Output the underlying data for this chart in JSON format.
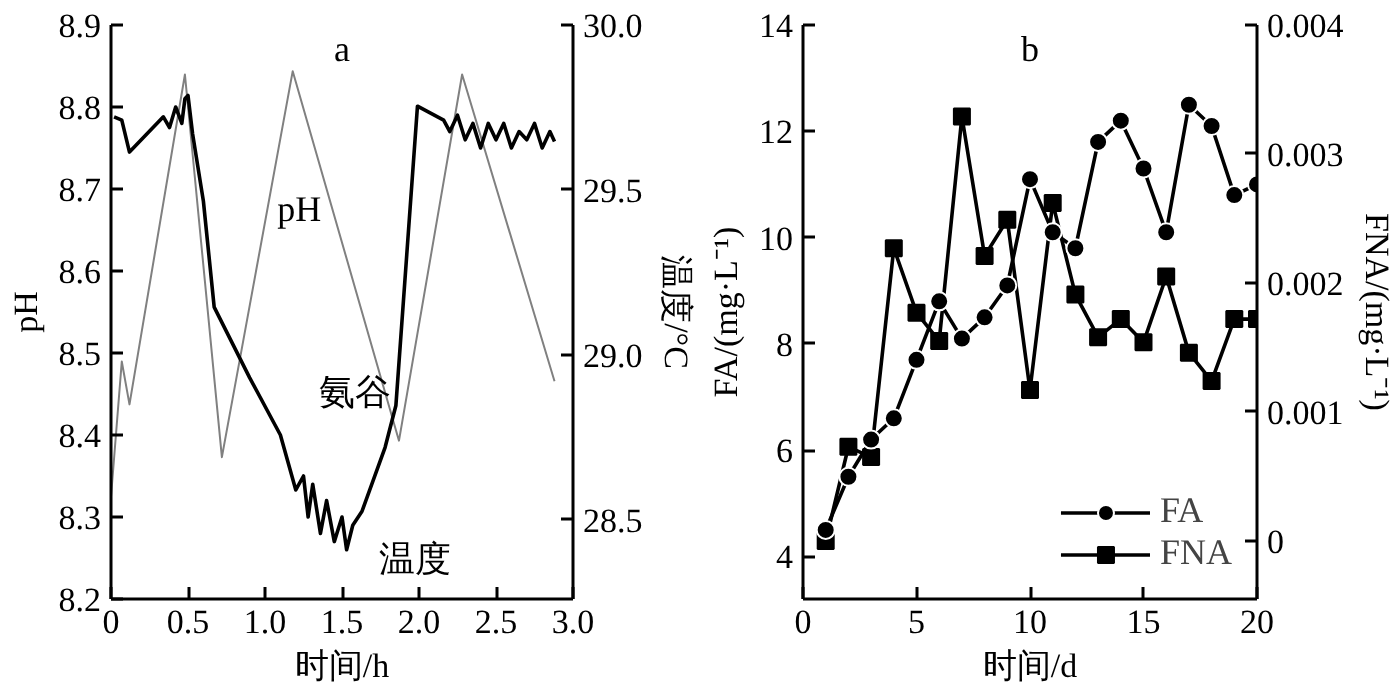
{
  "chart_data": [
    {
      "type": "line",
      "title": "a",
      "xlabel": "时间/h",
      "ylabel": "pH",
      "y2label": "温度/°C",
      "xlim": [
        0,
        3
      ],
      "xticks": [
        0,
        0.5,
        {
          "value": 1,
          "label": "1.0"
        },
        1.5,
        {
          "value": 2,
          "label": "2.0"
        },
        2.5,
        {
          "value": 3,
          "label": "3.0"
        }
      ],
      "ylim": [
        8.2,
        8.9
      ],
      "yticks": [
        8.2,
        8.3,
        8.4,
        8.5,
        8.6,
        8.7,
        8.8,
        8.9
      ],
      "y2lim": [
        28.26,
        30.0
      ],
      "y2ticks": [
        28.5,
        {
          "value": 29,
          "label": "29.0"
        },
        29.5,
        {
          "value": 30,
          "label": "30.0"
        }
      ],
      "grid": false,
      "legend": false,
      "marker": "none",
      "annotations": [
        "pH",
        "氨谷",
        "温度"
      ],
      "series": [
        {
          "color": "#000000",
          "x": [
            0.02,
            0.07,
            0.12,
            0.34,
            0.38,
            0.42,
            0.46,
            0.48,
            0.5,
            0.53,
            0.6,
            0.67,
            0.9,
            1.1,
            1.2,
            1.25,
            1.28,
            1.31,
            1.36,
            1.4,
            1.45,
            1.5,
            1.53,
            1.57,
            1.63,
            1.78,
            1.85,
            1.99,
            2.16,
            2.2,
            2.25,
            2.3,
            2.35,
            2.4,
            2.45,
            2.5,
            2.55,
            2.6,
            2.65,
            2.7,
            2.75,
            2.8,
            2.85,
            2.88
          ],
          "values": [
            8.788,
            8.784,
            8.745,
            8.788,
            8.775,
            8.8,
            8.78,
            8.81,
            8.814,
            8.767,
            8.685,
            8.556,
            8.47,
            8.4,
            8.333,
            8.35,
            8.3,
            8.34,
            8.28,
            8.32,
            8.27,
            8.3,
            8.26,
            8.29,
            8.307,
            8.385,
            8.436,
            8.801,
            8.784,
            8.77,
            8.79,
            8.76,
            8.78,
            8.75,
            8.78,
            8.76,
            8.78,
            8.75,
            8.77,
            8.76,
            8.78,
            8.75,
            8.77,
            8.758
          ]
        },
        {
          "color": "#808080",
          "axis": "y2",
          "x": [
            0,
            0.07,
            0.12,
            0.48,
            0.72,
            1.18,
            1.87,
            2.28,
            2.88
          ],
          "values": [
            28.57,
            28.98,
            28.85,
            29.85,
            28.69,
            29.86,
            28.74,
            29.85,
            28.92
          ]
        }
      ]
    },
    {
      "type": "line",
      "title": "b",
      "xlabel": "时间/d",
      "ylabel": "FA/(mg·L⁻¹)",
      "y2label": "FNA/(mg·L⁻¹)",
      "xlim": [
        0,
        20
      ],
      "xticks": [
        0,
        5,
        10,
        15,
        20
      ],
      "ylim": [
        3.2,
        14
      ],
      "yticks": [
        4,
        6,
        8,
        10,
        12,
        14
      ],
      "y2lim": [
        -0.00045,
        0.004
      ],
      "y2ticks": [
        0,
        0.001,
        0.002,
        0.003,
        0.004
      ],
      "grid": false,
      "legend": "bottom right",
      "series": [
        {
          "name": "FA",
          "color": "#000000",
          "marker": "circle",
          "x": [
            1,
            2,
            3,
            4,
            5,
            6,
            7,
            8,
            9,
            10,
            11,
            12,
            13,
            14,
            15,
            16,
            17,
            18,
            19,
            20
          ],
          "values": [
            4.5,
            5.5,
            6.2,
            6.6,
            7.7,
            8.8,
            8.1,
            8.5,
            9.1,
            11.1,
            10.1,
            9.8,
            11.8,
            12.2,
            11.3,
            10.1,
            12.5,
            12.1,
            10.8,
            11.0
          ]
        },
        {
          "name": "FNA",
          "color": "#000000",
          "marker": "square",
          "axis": "y2",
          "x": [
            1,
            2,
            3,
            4,
            5,
            6,
            7,
            8,
            9,
            10,
            11,
            12,
            13,
            14,
            15,
            16,
            17,
            18,
            19,
            20
          ],
          "values": [
            0,
            0.00073,
            0.00065,
            0.00227,
            0.00177,
            0.00155,
            0.00329,
            0.00221,
            0.00249,
            0.00117,
            0.00262,
            0.00191,
            0.00158,
            0.00172,
            0.00154,
            0.00205,
            0.00146,
            0.00124,
            0.00172,
            0.00172
          ]
        }
      ]
    }
  ]
}
